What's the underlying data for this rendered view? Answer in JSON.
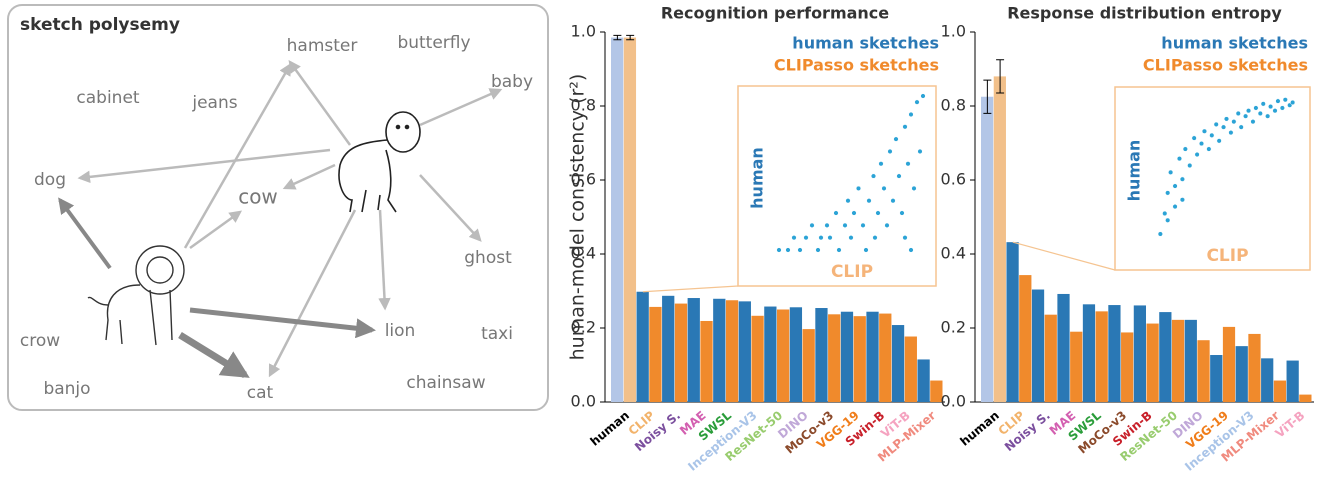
{
  "diagram": {
    "title": "sketch polysemy",
    "words": [
      "hamster",
      "butterfly",
      "baby",
      "cabinet",
      "jeans",
      "dog",
      "cow",
      "ghost",
      "crow",
      "lion",
      "taxi",
      "banjo",
      "cat",
      "chainsaw"
    ]
  },
  "chart_data": [
    {
      "type": "bar",
      "title": "Recognition performance",
      "y_label": "human-model consistency (r²)",
      "categories": [
        "human",
        "CLIP",
        "Noisy S.",
        "MAE",
        "SWSL",
        "Inception-V3",
        "ResNet-50",
        "DINO",
        "MoCo-v3",
        "VGG-19",
        "Swin-B",
        "ViT-B",
        "MLP-Mixer"
      ],
      "category_colors": [
        "#000000",
        "#f2b36b",
        "#7b4f9e",
        "#d35fb0",
        "#2a9d3a",
        "#a9c4e8",
        "#98cc6e",
        "#c0a8d8",
        "#8b4a2b",
        "#f07d1a",
        "#c8202a",
        "#f5a3c0",
        "#f08a7e"
      ],
      "series": [
        {
          "name": "human sketches",
          "color": "#2a78b5",
          "human_color": "#b3c6e7",
          "values": [
            0.985,
            0.298,
            0.287,
            0.281,
            0.279,
            0.272,
            0.258,
            0.256,
            0.254,
            0.244,
            0.244,
            0.208,
            0.115
          ],
          "errors": [
            0.006,
            null,
            null,
            null,
            null,
            null,
            null,
            null,
            null,
            null,
            null,
            null,
            null
          ]
        },
        {
          "name": "CLIPasso sketches",
          "color": "#f08a2c",
          "human_color": "#f2c08a",
          "values": [
            0.985,
            0.257,
            0.266,
            0.219,
            0.275,
            0.233,
            0.25,
            0.197,
            0.237,
            0.232,
            0.239,
            0.177,
            0.058
          ],
          "errors": [
            0.006,
            null,
            null,
            null,
            null,
            null,
            null,
            null,
            null,
            null,
            null,
            null,
            null
          ]
        }
      ],
      "ylim": [
        0,
        1.0
      ],
      "yticks": [
        {
          "value": 0,
          "label": "0.0"
        },
        {
          "value": 0.2,
          "label": "0.2"
        },
        {
          "value": 0.4,
          "label": "0.4"
        },
        {
          "value": 0.6,
          "label": "0.6"
        },
        {
          "value": 0.8,
          "label": "0.8"
        },
        {
          "value": 1.0,
          "label": "1.0"
        }
      ],
      "inset": {
        "type": "scatter",
        "x_label": "CLIP",
        "y_label": "human",
        "color": "#2ba3d6",
        "xlim": [
          0,
          1
        ],
        "ylim": [
          0,
          1
        ],
        "x": [
          0.02,
          0.08,
          0.12,
          0.16,
          0.2,
          0.24,
          0.28,
          0.3,
          0.34,
          0.36,
          0.4,
          0.42,
          0.46,
          0.48,
          0.5,
          0.52,
          0.55,
          0.58,
          0.6,
          0.62,
          0.65,
          0.66,
          0.68,
          0.7,
          0.72,
          0.74,
          0.76,
          0.78,
          0.8,
          0.82,
          0.84,
          0.86,
          0.88,
          0.9,
          0.92,
          0.94,
          0.96,
          0.98,
          0.86,
          0.9
        ],
        "y": [
          0,
          0,
          0.08,
          0,
          0.08,
          0.16,
          0,
          0.08,
          0.16,
          0.08,
          0.24,
          0,
          0.16,
          0.32,
          0.08,
          0.24,
          0.4,
          0.16,
          0,
          0.32,
          0.48,
          0.08,
          0.24,
          0.56,
          0.4,
          0.16,
          0.64,
          0.32,
          0.72,
          0.48,
          0.24,
          0.8,
          0.56,
          0.88,
          0.4,
          0.96,
          0.64,
          1.0,
          0.08,
          0
        ]
      }
    },
    {
      "type": "bar",
      "title": "Response distribution entropy",
      "categories": [
        "human",
        "CLIP",
        "Noisy S.",
        "MAE",
        "SWSL",
        "MoCo-v3",
        "Swin-B",
        "ResNet-50",
        "DINO",
        "VGG-19",
        "Inception-V3",
        "MLP-Mixer",
        "ViT-B"
      ],
      "category_colors": [
        "#000000",
        "#f2b36b",
        "#7b4f9e",
        "#d35fb0",
        "#2a9d3a",
        "#8b4a2b",
        "#c8202a",
        "#98cc6e",
        "#c0a8d8",
        "#f07d1a",
        "#a9c4e8",
        "#f08a7e",
        "#f5a3c0"
      ],
      "series": [
        {
          "name": "human sketches",
          "color": "#2a78b5",
          "human_color": "#b3c6e7",
          "values": [
            0.825,
            0.432,
            0.304,
            0.292,
            0.264,
            0.262,
            0.261,
            0.243,
            0.222,
            0.127,
            0.151,
            0.118,
            0.112
          ],
          "errors": [
            0.045,
            null,
            null,
            null,
            null,
            null,
            null,
            null,
            null,
            null,
            null,
            null,
            null
          ]
        },
        {
          "name": "CLIPasso sketches",
          "color": "#f08a2c",
          "human_color": "#f2c08a",
          "values": [
            0.88,
            0.343,
            0.236,
            0.19,
            0.245,
            0.188,
            0.212,
            0.222,
            0.167,
            0.203,
            0.184,
            0.058,
            0.02
          ],
          "errors": [
            0.045,
            null,
            null,
            null,
            null,
            null,
            null,
            null,
            null,
            null,
            null,
            null,
            null
          ]
        }
      ],
      "ylim": [
        0,
        1.0
      ],
      "yticks": [
        {
          "value": 0,
          "label": "0.0"
        },
        {
          "value": 0.2,
          "label": "0.2"
        },
        {
          "value": 0.4,
          "label": "0.4"
        },
        {
          "value": 0.6,
          "label": "0.6"
        },
        {
          "value": 0.8,
          "label": "0.8"
        },
        {
          "value": 1.0,
          "label": "1.0"
        }
      ],
      "inset": {
        "type": "scatter",
        "x_label": "CLIP",
        "y_label": "human",
        "color": "#2ba3d6",
        "xlim": [
          0,
          1
        ],
        "ylim": [
          0,
          1
        ],
        "x": [
          0.05,
          0.08,
          0.1,
          0.12,
          0.15,
          0.18,
          0.2,
          0.22,
          0.25,
          0.28,
          0.3,
          0.33,
          0.35,
          0.38,
          0.4,
          0.43,
          0.45,
          0.48,
          0.5,
          0.53,
          0.55,
          0.58,
          0.6,
          0.63,
          0.65,
          0.68,
          0.7,
          0.73,
          0.75,
          0.78,
          0.8,
          0.83,
          0.85,
          0.88,
          0.9,
          0.93,
          0.95,
          0.1,
          0.15,
          0.2
        ],
        "y": [
          0,
          0.15,
          0.3,
          0.45,
          0.2,
          0.55,
          0.4,
          0.62,
          0.5,
          0.7,
          0.58,
          0.66,
          0.75,
          0.62,
          0.72,
          0.8,
          0.68,
          0.78,
          0.84,
          0.74,
          0.82,
          0.88,
          0.78,
          0.86,
          0.9,
          0.82,
          0.92,
          0.88,
          0.95,
          0.86,
          0.93,
          0.9,
          0.97,
          0.92,
          0.98,
          0.94,
          0.96,
          0.1,
          0.35,
          0.25
        ]
      }
    }
  ]
}
